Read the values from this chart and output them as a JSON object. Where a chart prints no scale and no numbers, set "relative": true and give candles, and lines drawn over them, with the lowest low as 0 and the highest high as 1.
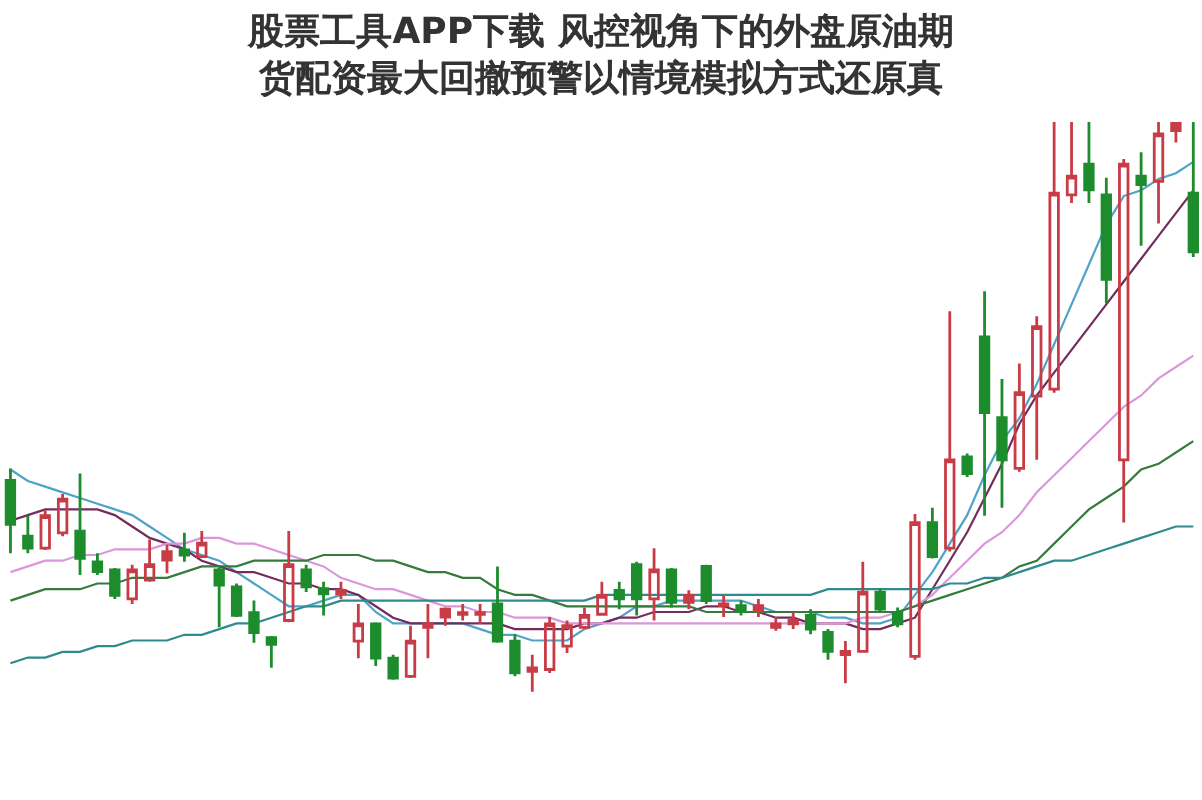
{
  "chart_data": {
    "type": "candlestick",
    "title": "股票工具APP下载 风控视角下的外盘原油期货配资最大回撤预警以情境模拟方式还原真",
    "relative": true,
    "categories": [
      null,
      null,
      null,
      null,
      null,
      null,
      null,
      null,
      null,
      null,
      null,
      null,
      null,
      null,
      null,
      null,
      null,
      null,
      null,
      null,
      null,
      null,
      null,
      null,
      null,
      null,
      null,
      null,
      null,
      null,
      null,
      null,
      null,
      null,
      null,
      null,
      null,
      null,
      null,
      null,
      null,
      null,
      null,
      null,
      null,
      null,
      null,
      null,
      null,
      null,
      null,
      null,
      null,
      null,
      null,
      null,
      null,
      null,
      null,
      null,
      null,
      null,
      null,
      null,
      null,
      null,
      null,
      null,
      null
    ],
    "ohlc": [
      [
        0.371,
        0.392,
        0.243,
        0.294
      ],
      [
        0.273,
        0.309,
        0.243,
        0.252
      ],
      [
        0.252,
        0.318,
        0.249,
        0.309
      ],
      [
        0.279,
        0.347,
        0.273,
        0.338
      ],
      [
        0.282,
        0.383,
        0.205,
        0.234
      ],
      [
        0.228,
        0.243,
        0.205,
        0.211
      ],
      [
        0.214,
        0.217,
        0.163,
        0.169
      ],
      [
        0.163,
        0.223,
        0.154,
        0.214
      ],
      [
        0.196,
        0.267,
        0.193,
        0.223
      ],
      [
        0.231,
        0.258,
        0.208,
        0.246
      ],
      [
        0.249,
        0.279,
        0.228,
        0.24
      ],
      [
        0.237,
        0.282,
        0.237,
        0.261
      ],
      [
        0.214,
        0.217,
        0.113,
        0.187
      ],
      [
        0.184,
        0.19,
        0.131,
        0.134
      ],
      [
        0.139,
        0.16,
        0.086,
        0.104
      ],
      [
        0.095,
        0.098,
        0.042,
        0.083
      ],
      [
        0.125,
        0.282,
        0.122,
        0.223
      ],
      [
        0.214,
        0.223,
        0.175,
        0.184
      ],
      [
        0.181,
        0.193,
        0.134,
        0.172
      ],
      [
        0.172,
        0.193,
        0.163,
        0.178
      ],
      [
        0.089,
        0.154,
        0.059,
        0.119
      ],
      [
        0.119,
        0.122,
        0.045,
        0.059
      ],
      [
        0.059,
        0.065,
        0.021,
        0.024
      ],
      [
        0.027,
        0.116,
        0.024,
        0.089
      ],
      [
        0.113,
        0.154,
        0.059,
        0.119
      ],
      [
        0.131,
        0.148,
        0.116,
        0.145
      ],
      [
        0.136,
        0.154,
        0.125,
        0.139
      ],
      [
        0.136,
        0.154,
        0.119,
        0.139
      ],
      [
        0.154,
        0.22,
        0.086,
        0.089
      ],
      [
        0.089,
        0.101,
        0.027,
        0.033
      ],
      [
        0.036,
        0.065,
        0.0,
        0.042
      ],
      [
        0.039,
        0.131,
        0.033,
        0.119
      ],
      [
        0.08,
        0.125,
        0.068,
        0.116
      ],
      [
        0.113,
        0.148,
        0.11,
        0.134
      ],
      [
        0.136,
        0.193,
        0.134,
        0.169
      ],
      [
        0.178,
        0.193,
        0.145,
        0.163
      ],
      [
        0.223,
        0.228,
        0.134,
        0.163
      ],
      [
        0.163,
        0.252,
        0.125,
        0.214
      ],
      [
        0.214,
        0.217,
        0.148,
        0.157
      ],
      [
        0.157,
        0.178,
        0.145,
        0.169
      ],
      [
        0.22,
        0.223,
        0.154,
        0.16
      ],
      [
        0.151,
        0.169,
        0.131,
        0.154
      ],
      [
        0.151,
        0.16,
        0.134,
        0.142
      ],
      [
        0.142,
        0.163,
        0.131,
        0.151
      ],
      [
        0.113,
        0.131,
        0.107,
        0.119
      ],
      [
        0.119,
        0.139,
        0.11,
        0.125
      ],
      [
        0.134,
        0.145,
        0.101,
        0.11
      ],
      [
        0.104,
        0.11,
        0.056,
        0.071
      ],
      [
        0.065,
        0.089,
        0.015,
        0.071
      ],
      [
        0.071,
        0.228,
        0.071,
        0.175
      ],
      [
        0.175,
        0.181,
        0.139,
        0.145
      ],
      [
        0.139,
        0.148,
        0.113,
        0.119
      ],
      [
        0.062,
        0.312,
        0.056,
        0.297
      ],
      [
        0.297,
        0.323,
        0.234,
        0.237
      ],
      [
        0.252,
        0.668,
        0.246,
        0.407
      ],
      [
        0.412,
        0.418,
        0.377,
        0.383
      ],
      [
        0.623,
        0.703,
        0.309,
        0.49
      ],
      [
        0.481,
        0.549,
        0.323,
        0.407
      ],
      [
        0.392,
        0.576,
        0.386,
        0.525
      ],
      [
        0.519,
        0.659,
        0.407,
        0.641
      ],
      [
        0.531,
        1.0,
        0.525,
        0.875
      ],
      [
        0.872,
        1.0,
        0.858,
        0.905
      ],
      [
        0.926,
        1.0,
        0.858,
        0.881
      ],
      [
        0.872,
        0.902,
        0.682,
        0.724
      ],
      [
        0.407,
        0.935,
        0.297,
        0.926
      ],
      [
        0.905,
        0.947,
        0.783,
        0.89
      ],
      [
        0.896,
        1.0,
        0.822,
        0.979
      ],
      [
        0.985,
        1.0,
        0.964,
        1.0
      ],
      [
        0.875,
        1.0,
        0.763,
        0.772
      ]
    ],
    "colors": [
      "#1c8c2c",
      "#1c8c2c",
      "#c83c46",
      "#c83c46",
      "#1c8c2c",
      "#1c8c2c",
      "#1c8c2c",
      "#c83c46",
      "#c83c46",
      "#c83c46",
      "#1c8c2c",
      "#c83c46",
      "#1c8c2c",
      "#1c8c2c",
      "#1c8c2c",
      "#1c8c2c",
      "#c83c46",
      "#1c8c2c",
      "#1c8c2c",
      "#c83c46",
      "#c83c46",
      "#1c8c2c",
      "#1c8c2c",
      "#c83c46",
      "#c83c46",
      "#c83c46",
      "#c83c46",
      "#c83c46",
      "#1c8c2c",
      "#1c8c2c",
      "#c83c46",
      "#c83c46",
      "#c83c46",
      "#c83c46",
      "#c83c46",
      "#1c8c2c",
      "#1c8c2c",
      "#c83c46",
      "#1c8c2c",
      "#c83c46",
      "#1c8c2c",
      "#c83c46",
      "#1c8c2c",
      "#c83c46",
      "#c83c46",
      "#c83c46",
      "#1c8c2c",
      "#1c8c2c",
      "#c83c46",
      "#c83c46",
      "#1c8c2c",
      "#1c8c2c",
      "#c83c46",
      "#1c8c2c",
      "#c83c46",
      "#1c8c2c",
      "#1c8c2c",
      "#1c8c2c",
      "#c83c46",
      "#c83c46",
      "#c83c46",
      "#c83c46",
      "#1c8c2c",
      "#1c8c2c",
      "#c83c46",
      "#1c8c2c",
      "#c83c46",
      "#c83c46",
      "#1c8c2c"
    ],
    "series": [
      {
        "type": "line",
        "color": "#4fa3c8",
        "values": [
          0.39,
          0.37,
          0.36,
          0.35,
          0.34,
          0.33,
          0.32,
          0.31,
          0.29,
          0.27,
          0.25,
          0.24,
          0.23,
          0.21,
          0.19,
          0.17,
          0.15,
          0.15,
          0.16,
          0.17,
          0.17,
          0.14,
          0.12,
          0.12,
          0.12,
          0.12,
          0.12,
          0.11,
          0.1,
          0.1,
          0.09,
          0.09,
          0.09,
          0.11,
          0.12,
          0.13,
          0.15,
          0.15,
          0.16,
          0.16,
          0.16,
          0.16,
          0.16,
          0.15,
          0.14,
          0.14,
          0.14,
          0.13,
          0.13,
          0.12,
          0.12,
          0.13,
          0.17,
          0.21,
          0.26,
          0.31,
          0.38,
          0.44,
          0.48,
          0.54,
          0.61,
          0.68,
          0.75,
          0.82,
          0.87,
          0.88,
          0.9,
          0.91,
          0.93
        ]
      },
      {
        "type": "line",
        "color": "#742c5c",
        "values": [
          0.3,
          0.31,
          0.32,
          0.32,
          0.32,
          0.32,
          0.31,
          0.29,
          0.27,
          0.26,
          0.25,
          0.23,
          0.22,
          0.21,
          0.21,
          0.2,
          0.19,
          0.19,
          0.18,
          0.18,
          0.17,
          0.15,
          0.13,
          0.12,
          0.12,
          0.12,
          0.12,
          0.12,
          0.12,
          0.11,
          0.11,
          0.11,
          0.11,
          0.12,
          0.12,
          0.13,
          0.13,
          0.14,
          0.14,
          0.14,
          0.15,
          0.15,
          0.14,
          0.14,
          0.13,
          0.13,
          0.12,
          0.12,
          0.12,
          0.11,
          0.11,
          0.12,
          0.13,
          0.18,
          0.23,
          0.28,
          0.34,
          0.4,
          0.47,
          0.52,
          0.56,
          0.6,
          0.64,
          0.68,
          0.72,
          0.76,
          0.8,
          0.84,
          0.88
        ]
      },
      {
        "type": "line",
        "color": "#dc96dc",
        "values": [
          0.21,
          0.22,
          0.23,
          0.23,
          0.24,
          0.24,
          0.25,
          0.25,
          0.25,
          0.26,
          0.26,
          0.27,
          0.27,
          0.26,
          0.26,
          0.25,
          0.24,
          0.23,
          0.22,
          0.2,
          0.19,
          0.18,
          0.18,
          0.17,
          0.16,
          0.15,
          0.15,
          0.14,
          0.14,
          0.13,
          0.13,
          0.13,
          0.12,
          0.12,
          0.12,
          0.12,
          0.12,
          0.12,
          0.12,
          0.12,
          0.12,
          0.12,
          0.12,
          0.12,
          0.12,
          0.12,
          0.12,
          0.12,
          0.12,
          0.13,
          0.13,
          0.14,
          0.15,
          0.17,
          0.2,
          0.23,
          0.26,
          0.28,
          0.31,
          0.35,
          0.38,
          0.41,
          0.44,
          0.47,
          0.5,
          0.52,
          0.55,
          0.57,
          0.59
        ]
      },
      {
        "type": "line",
        "color": "#367a3e",
        "values": [
          0.16,
          0.17,
          0.18,
          0.18,
          0.18,
          0.19,
          0.19,
          0.2,
          0.2,
          0.2,
          0.21,
          0.22,
          0.22,
          0.22,
          0.23,
          0.23,
          0.23,
          0.23,
          0.24,
          0.24,
          0.24,
          0.23,
          0.23,
          0.22,
          0.21,
          0.21,
          0.2,
          0.2,
          0.18,
          0.17,
          0.17,
          0.16,
          0.15,
          0.15,
          0.15,
          0.15,
          0.15,
          0.15,
          0.15,
          0.15,
          0.14,
          0.14,
          0.14,
          0.14,
          0.14,
          0.14,
          0.14,
          0.14,
          0.14,
          0.14,
          0.14,
          0.14,
          0.15,
          0.16,
          0.17,
          0.18,
          0.19,
          0.2,
          0.22,
          0.23,
          0.26,
          0.29,
          0.32,
          0.34,
          0.36,
          0.39,
          0.4,
          0.42,
          0.44
        ]
      },
      {
        "type": "line",
        "color": "#2e8a8c",
        "values": [
          0.05,
          0.06,
          0.06,
          0.07,
          0.07,
          0.08,
          0.08,
          0.09,
          0.09,
          0.09,
          0.1,
          0.1,
          0.11,
          0.12,
          0.12,
          0.13,
          0.14,
          0.15,
          0.15,
          0.16,
          0.16,
          0.16,
          0.16,
          0.16,
          0.16,
          0.16,
          0.16,
          0.16,
          0.16,
          0.16,
          0.16,
          0.16,
          0.16,
          0.16,
          0.17,
          0.17,
          0.17,
          0.17,
          0.17,
          0.17,
          0.17,
          0.17,
          0.17,
          0.17,
          0.17,
          0.17,
          0.17,
          0.18,
          0.18,
          0.18,
          0.18,
          0.18,
          0.18,
          0.18,
          0.19,
          0.19,
          0.2,
          0.2,
          0.21,
          0.22,
          0.23,
          0.23,
          0.24,
          0.25,
          0.26,
          0.27,
          0.28,
          0.29,
          0.29
        ]
      }
    ]
  }
}
